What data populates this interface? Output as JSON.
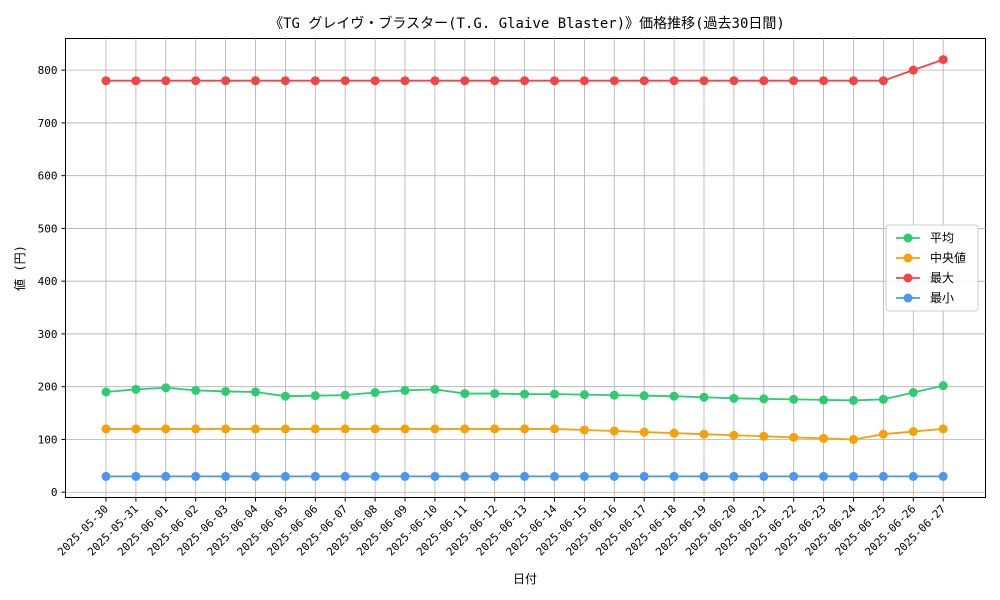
{
  "chart_data": {
    "type": "line",
    "title": "《TG グレイヴ・ブラスター(T.G. Glaive Blaster)》価格推移(過去30日間)",
    "xlabel": "日付",
    "ylabel": "値 (円)",
    "ylim": [
      -10,
      860
    ],
    "yticks": [
      0,
      100,
      200,
      300,
      400,
      500,
      600,
      700,
      800
    ],
    "grid": true,
    "legend_position": "center-right",
    "categories": [
      "2025-05-30",
      "2025-05-31",
      "2025-06-01",
      "2025-06-02",
      "2025-06-03",
      "2025-06-04",
      "2025-06-05",
      "2025-06-06",
      "2025-06-07",
      "2025-06-08",
      "2025-06-09",
      "2025-06-10",
      "2025-06-11",
      "2025-06-12",
      "2025-06-13",
      "2025-06-14",
      "2025-06-15",
      "2025-06-16",
      "2025-06-17",
      "2025-06-18",
      "2025-06-19",
      "2025-06-20",
      "2025-06-21",
      "2025-06-22",
      "2025-06-23",
      "2025-06-24",
      "2025-06-25",
      "2025-06-26",
      "2025-06-27"
    ],
    "series": [
      {
        "name": "平均",
        "color": "#2ecc71",
        "values": [
          190,
          195,
          198,
          193,
          191,
          190,
          182,
          183,
          184,
          189,
          193,
          195,
          187,
          187,
          186,
          186,
          185,
          184,
          183,
          182,
          180,
          178,
          177,
          176,
          175,
          174,
          176,
          189,
          202
        ]
      },
      {
        "name": "中央値",
        "color": "#f5a10a",
        "values": [
          120,
          120,
          120,
          120,
          120,
          120,
          120,
          120,
          120,
          120,
          120,
          120,
          120,
          120,
          120,
          120,
          118,
          116,
          114,
          112,
          110,
          108,
          106,
          104,
          102,
          100,
          110,
          115,
          120
        ]
      },
      {
        "name": "最大",
        "color": "#f04646",
        "values": [
          780,
          780,
          780,
          780,
          780,
          780,
          780,
          780,
          780,
          780,
          780,
          780,
          780,
          780,
          780,
          780,
          780,
          780,
          780,
          780,
          780,
          780,
          780,
          780,
          780,
          780,
          780,
          800,
          820
        ]
      },
      {
        "name": "最小",
        "color": "#4b96f0",
        "values": [
          30,
          30,
          30,
          30,
          30,
          30,
          30,
          30,
          30,
          30,
          30,
          30,
          30,
          30,
          30,
          30,
          30,
          30,
          30,
          30,
          30,
          30,
          30,
          30,
          30,
          30,
          30,
          30,
          30
        ]
      }
    ]
  }
}
